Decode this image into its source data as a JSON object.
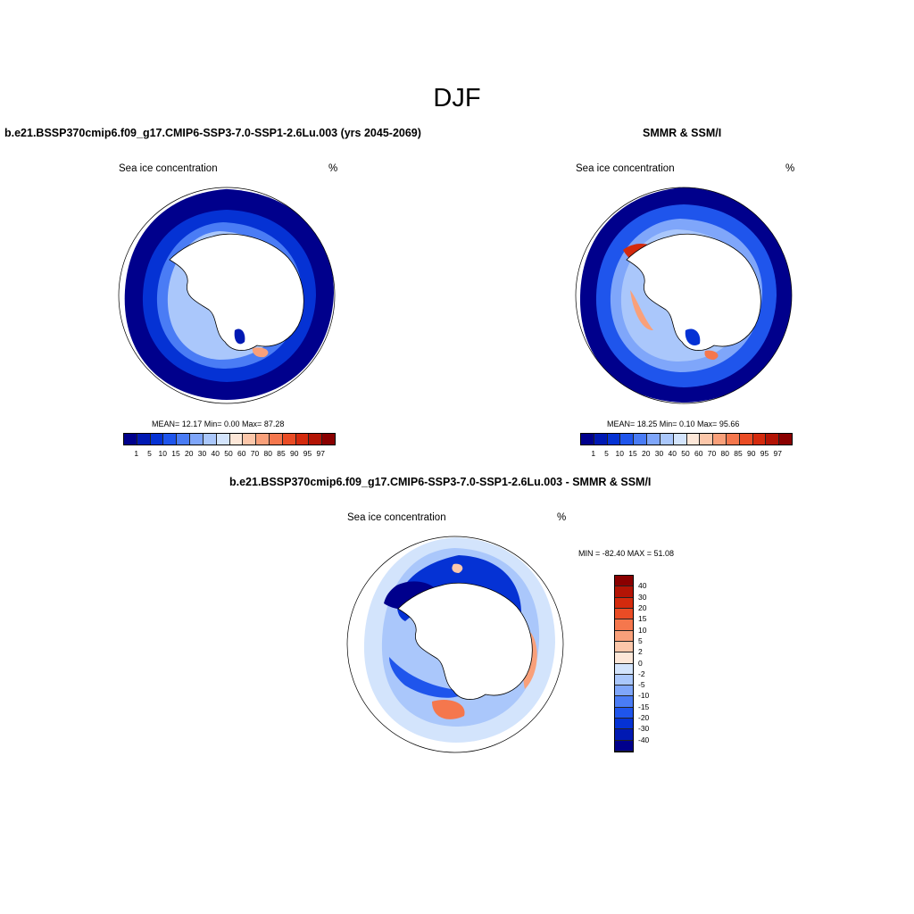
{
  "figure": {
    "title": "DJF"
  },
  "panel_left": {
    "title": "b.e21.BSSP370cmip6.f09_g17.CMIP6-SSP3-7.0-SSP1-2.6Lu.003 (yrs 2045-2069)",
    "left_string": "Sea ice concentration",
    "right_string": "%",
    "stats": "MEAN=  12.17  Min=    0.00  Max=  87.28"
  },
  "panel_right": {
    "title": "SMMR & SSM/I",
    "left_string": "Sea ice concentration",
    "right_string": "%",
    "stats": "MEAN=  18.25  Min=    0.10  Max=  95.66"
  },
  "panel_diff": {
    "title": "b.e21.BSSP370cmip6.f09_g17.CMIP6-SSP3-7.0-SSP1-2.6Lu.003 - SMMR & SSM/I",
    "left_string": "Sea ice concentration",
    "right_string": "%",
    "stats": "MIN = -82.40 MAX =  51.08"
  },
  "colorbar_conc": {
    "labels": [
      "1",
      "5",
      "10",
      "15",
      "20",
      "30",
      "40",
      "50",
      "60",
      "70",
      "80",
      "85",
      "90",
      "95",
      "97"
    ],
    "colors": [
      "#00008c",
      "#0019b3",
      "#0532d4",
      "#1f55ec",
      "#4a7cf5",
      "#7fa6fa",
      "#aac7fb",
      "#d3e4fc",
      "#fde7d8",
      "#fcc7aa",
      "#f9a07a",
      "#f5774d",
      "#ea4c25",
      "#d42a0d",
      "#b31405",
      "#8a0000"
    ]
  },
  "colorbar_diff": {
    "labels": [
      "40",
      "30",
      "20",
      "15",
      "10",
      "5",
      "2",
      "0",
      "-2",
      "-5",
      "-10",
      "-15",
      "-20",
      "-30",
      "-40"
    ],
    "colors": [
      "#8a0000",
      "#b31405",
      "#d42a0d",
      "#ea4c25",
      "#f5774d",
      "#f9a07a",
      "#fcc7aa",
      "#fde7d8",
      "#d3e4fc",
      "#aac7fb",
      "#7fa6fa",
      "#4a7cf5",
      "#1f55ec",
      "#0532d4",
      "#0019b3",
      "#00008c"
    ]
  },
  "maps": {
    "left": {
      "ice_colors": [
        "#00008c",
        "#0532d4",
        "#1f55ec",
        "#4a7cf5",
        "#7fa6fa",
        "#aac7fb",
        "#d3e4fc"
      ],
      "accent": "#f9a07a"
    },
    "right": {
      "ice_colors": [
        "#00008c",
        "#0532d4",
        "#1f55ec",
        "#4a7cf5",
        "#7fa6fa",
        "#aac7fb",
        "#d3e4fc"
      ],
      "accent": "#d42a0d"
    },
    "diff": {
      "ice_colors": [
        "#d3e4fc",
        "#aac7fb",
        "#4a7cf5",
        "#0532d4",
        "#00008c"
      ],
      "accent": "#f5774d"
    }
  }
}
